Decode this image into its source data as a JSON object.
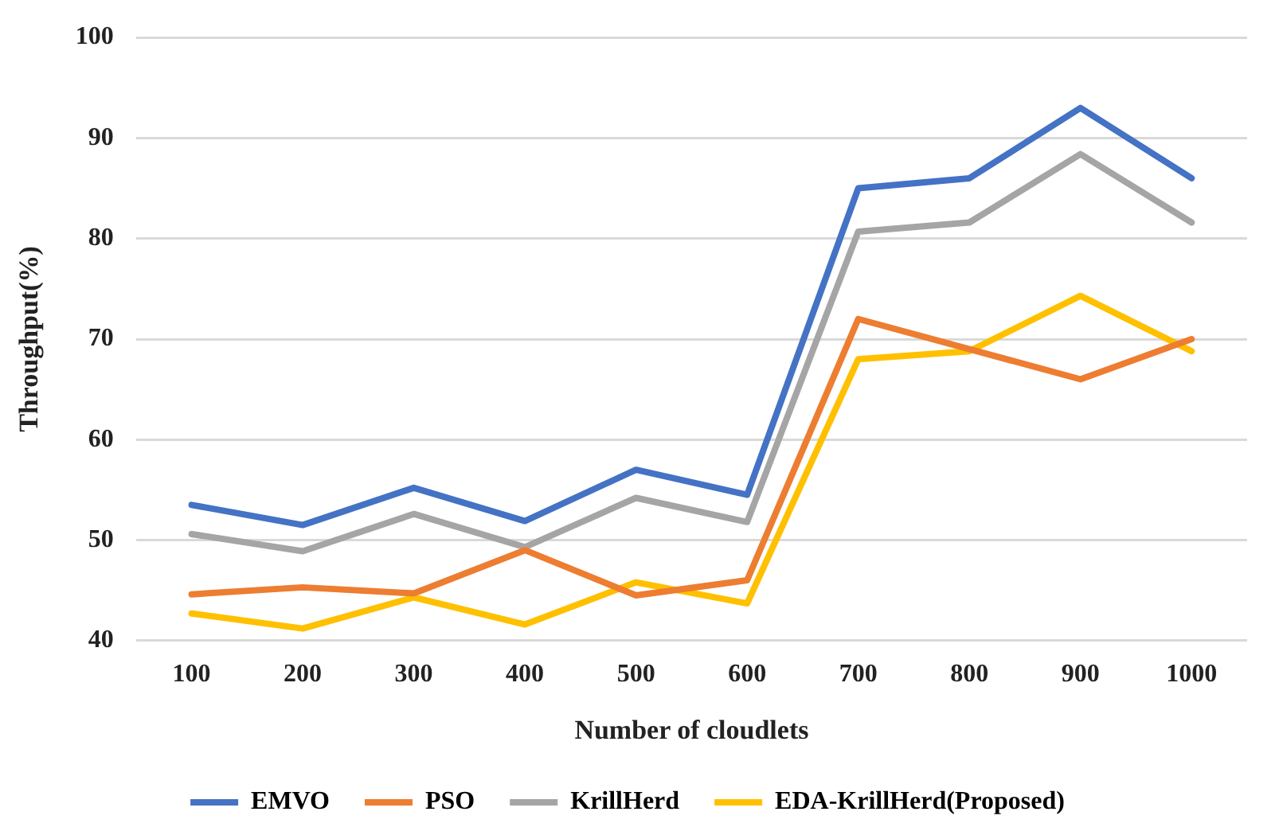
{
  "chart_data": {
    "type": "line",
    "xlabel": "Number of cloudlets",
    "ylabel": "Throughput(%)",
    "categories": [
      "100",
      "200",
      "300",
      "400",
      "500",
      "600",
      "700",
      "800",
      "900",
      "1000"
    ],
    "series": [
      {
        "name": "EMVO",
        "color": "#4472c4",
        "values": [
          53.5,
          51.5,
          55.2,
          51.9,
          57,
          54.5,
          85,
          86,
          93,
          86
        ]
      },
      {
        "name": "PSO",
        "color": "#ed7d31",
        "values": [
          44.6,
          45.3,
          44.7,
          49,
          44.5,
          46,
          72,
          69,
          66,
          70
        ]
      },
      {
        "name": "KrillHerd",
        "color": "#a5a5a5",
        "values": [
          50.6,
          48.9,
          52.6,
          49.3,
          54.2,
          51.8,
          80.7,
          81.6,
          88.4,
          81.6
        ]
      },
      {
        "name": "EDA-KrillHerd(Proposed)",
        "color": "#ffc000",
        "values": [
          42.7,
          41.2,
          44.3,
          41.6,
          45.8,
          43.7,
          68,
          68.8,
          74.3,
          68.8
        ]
      }
    ],
    "ylim": [
      40,
      100
    ],
    "yticks": [
      40,
      50,
      60,
      70,
      80,
      90,
      100
    ],
    "grid": "y",
    "legend": "bottom",
    "marker": "none",
    "line_style": "solid"
  }
}
